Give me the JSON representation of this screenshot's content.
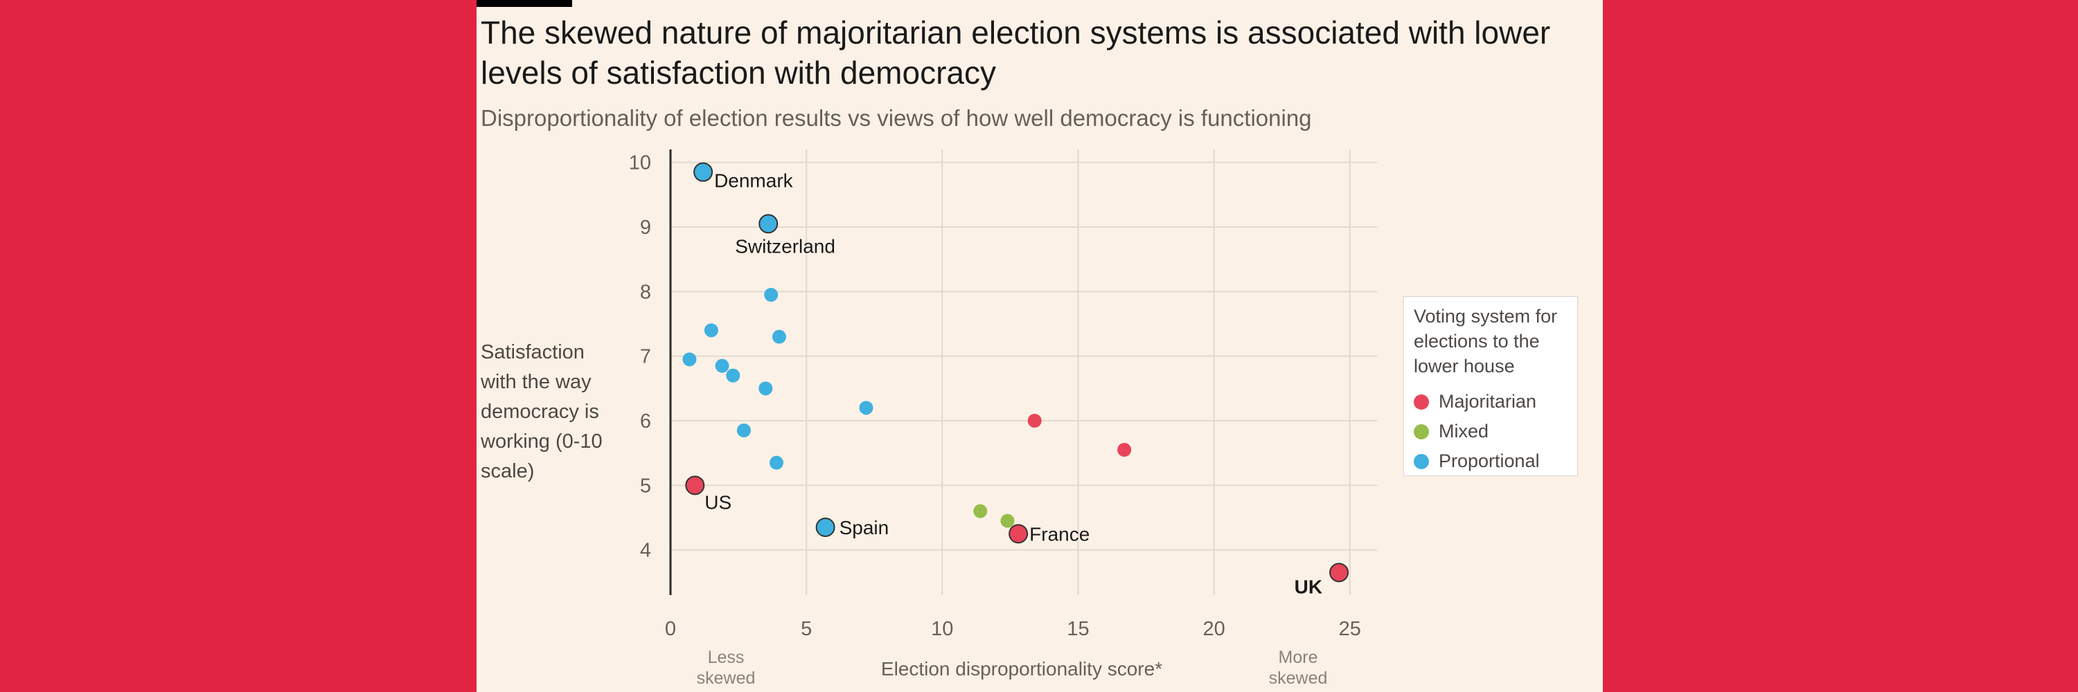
{
  "title": "The skewed nature of majoritarian election systems is associated with lower levels of satisfaction with democracy",
  "subtitle": "Disproportionality of election results vs views of how well democracy is functioning",
  "legend": {
    "title": "Voting system for elections to the lower house",
    "items": [
      {
        "label": "Majoritarian",
        "color": "#e8445a"
      },
      {
        "label": "Mixed",
        "color": "#96bd4b"
      },
      {
        "label": "Proportional",
        "color": "#3fb0e0"
      }
    ]
  },
  "chart_data": {
    "type": "scatter",
    "title": "The skewed nature of majoritarian election systems is associated with lower levels of satisfaction with democracy",
    "xlabel": "Election disproportionality score*",
    "ylabel": "Satisfaction with the way democracy is working (0-10 scale)",
    "xlim": [
      0,
      26
    ],
    "ylim": [
      3.3,
      10.2
    ],
    "xticks": [
      0,
      5,
      10,
      15,
      20,
      25
    ],
    "yticks": [
      4,
      5,
      6,
      7,
      8,
      9,
      10
    ],
    "x_axis_annotations": {
      "left": "Less skewed",
      "right": "More skewed"
    },
    "grid": true,
    "series": [
      {
        "name": "Majoritarian",
        "color": "#e8445a",
        "points": [
          {
            "x": 0.9,
            "y": 5.0,
            "label": "US"
          },
          {
            "x": 12.8,
            "y": 4.25,
            "label": "France"
          },
          {
            "x": 13.4,
            "y": 6.0,
            "label": ""
          },
          {
            "x": 16.7,
            "y": 5.55,
            "label": ""
          },
          {
            "x": 24.6,
            "y": 3.65,
            "label": "UK"
          }
        ]
      },
      {
        "name": "Mixed",
        "color": "#96bd4b",
        "points": [
          {
            "x": 11.4,
            "y": 4.6,
            "label": ""
          },
          {
            "x": 12.4,
            "y": 4.45,
            "label": ""
          }
        ]
      },
      {
        "name": "Proportional",
        "color": "#3fb0e0",
        "points": [
          {
            "x": 1.2,
            "y": 9.85,
            "label": "Denmark"
          },
          {
            "x": 3.6,
            "y": 9.05,
            "label": "Switzerland"
          },
          {
            "x": 3.7,
            "y": 7.95,
            "label": ""
          },
          {
            "x": 1.5,
            "y": 7.4,
            "label": ""
          },
          {
            "x": 4.0,
            "y": 7.3,
            "label": ""
          },
          {
            "x": 0.7,
            "y": 6.95,
            "label": ""
          },
          {
            "x": 1.9,
            "y": 6.85,
            "label": ""
          },
          {
            "x": 2.3,
            "y": 6.7,
            "label": ""
          },
          {
            "x": 3.5,
            "y": 6.5,
            "label": ""
          },
          {
            "x": 7.2,
            "y": 6.2,
            "label": ""
          },
          {
            "x": 2.7,
            "y": 5.85,
            "label": ""
          },
          {
            "x": 3.9,
            "y": 5.35,
            "label": ""
          },
          {
            "x": 5.7,
            "y": 4.35,
            "label": "Spain"
          }
        ]
      }
    ]
  }
}
